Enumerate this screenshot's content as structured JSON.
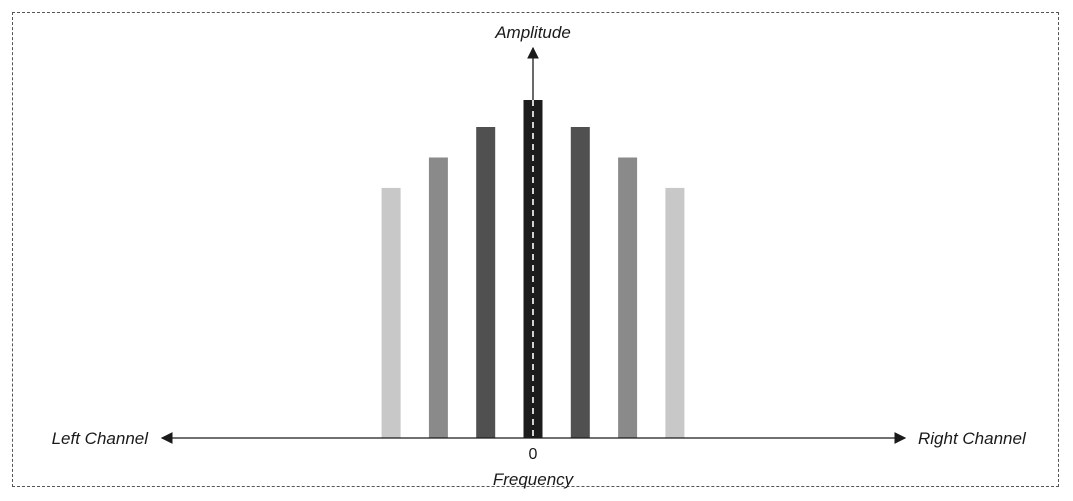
{
  "chart_data": {
    "type": "bar",
    "title": "",
    "ylabel": "Amplitude",
    "xlabel": "Frequency",
    "left_label": "Left Channel",
    "right_label": "Right Channel",
    "origin_tick": "0",
    "ylim": [
      0,
      1
    ],
    "bars": [
      {
        "x": -3,
        "value": 0.74,
        "color": "#c8c8c8"
      },
      {
        "x": -2,
        "value": 0.83,
        "color": "#8a8a8a"
      },
      {
        "x": -1,
        "value": 0.92,
        "color": "#505050"
      },
      {
        "x": 0,
        "value": 1.0,
        "color": "#1c1c1c"
      },
      {
        "x": 1,
        "value": 0.92,
        "color": "#505050"
      },
      {
        "x": 2,
        "value": 0.83,
        "color": "#8a8a8a"
      },
      {
        "x": 3,
        "value": 0.74,
        "color": "#c8c8c8"
      }
    ]
  }
}
